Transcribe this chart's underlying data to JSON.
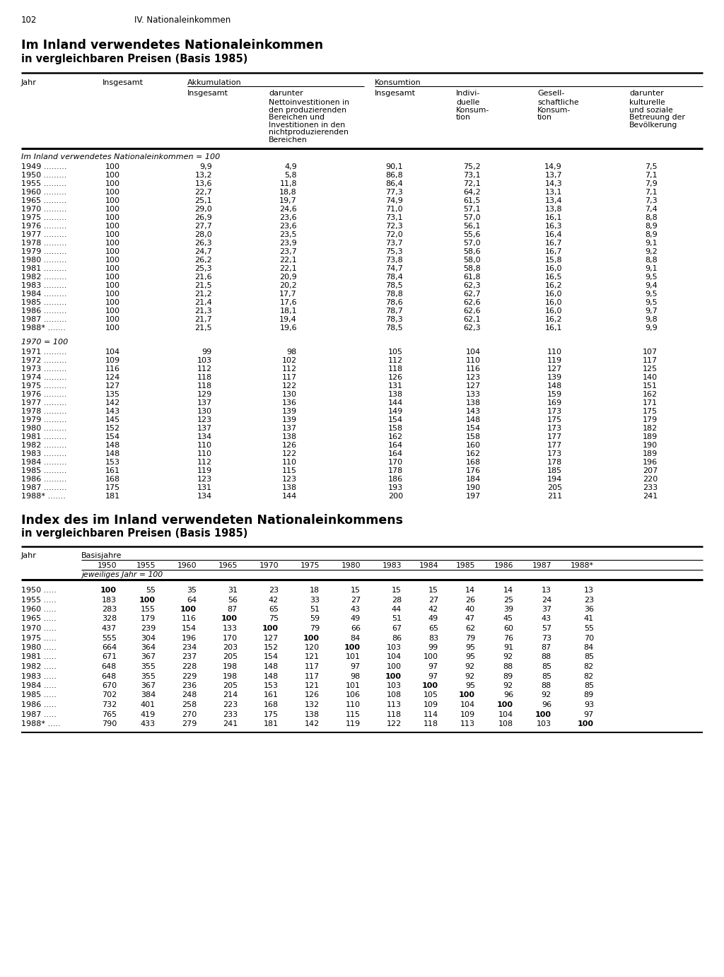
{
  "page_num": "102",
  "section_title": "IV. Nationaleinkommen",
  "title1": "Im Inland verwendetes Nationaleinkommen",
  "subtitle1": "in vergleichbaren Preisen (Basis 1985)",
  "title2": "Index des im Inland verwendeten Nationaleinkommens",
  "subtitle2": "in vergleichbaren Preisen (Basis 1985)",
  "section1_label": "Im Inland verwendetes Nationaleinkommen = 100",
  "section2_label": "1970 = 100",
  "table1_data": [
    [
      "1949",
      "100",
      "9,9",
      "4,9",
      "90,1",
      "75,2",
      "14,9",
      "7,5"
    ],
    [
      "1950",
      "100",
      "13,2",
      "5,8",
      "86,8",
      "73,1",
      "13,7",
      "7,1"
    ],
    [
      "1955",
      "100",
      "13,6",
      "11,8",
      "86,4",
      "72,1",
      "14,3",
      "7,9"
    ],
    [
      "1960",
      "100",
      "22,7",
      "18,8",
      "77,3",
      "64,2",
      "13,1",
      "7,1"
    ],
    [
      "1965",
      "100",
      "25,1",
      "19,7",
      "74,9",
      "61,5",
      "13,4",
      "7,3"
    ],
    [
      "1970",
      "100",
      "29,0",
      "24,6",
      "71,0",
      "57,1",
      "13,8",
      "7,4"
    ],
    [
      "1975",
      "100",
      "26,9",
      "23,6",
      "73,1",
      "57,0",
      "16,1",
      "8,8"
    ],
    [
      "1976",
      "100",
      "27,7",
      "23,6",
      "72,3",
      "56,1",
      "16,3",
      "8,9"
    ],
    [
      "1977",
      "100",
      "28,0",
      "23,5",
      "72,0",
      "55,6",
      "16,4",
      "8,9"
    ],
    [
      "1978",
      "100",
      "26,3",
      "23,9",
      "73,7",
      "57,0",
      "16,7",
      "9,1"
    ],
    [
      "1979",
      "100",
      "24,7",
      "23,7",
      "75,3",
      "58,6",
      "16,7",
      "9,2"
    ],
    [
      "1980",
      "100",
      "26,2",
      "22,1",
      "73,8",
      "58,0",
      "15,8",
      "8,8"
    ],
    [
      "1981",
      "100",
      "25,3",
      "22,1",
      "74,7",
      "58,8",
      "16,0",
      "9,1"
    ],
    [
      "1982",
      "100",
      "21,6",
      "20,9",
      "78,4",
      "61,8",
      "16,5",
      "9,5"
    ],
    [
      "1983",
      "100",
      "21,5",
      "20,2",
      "78,5",
      "62,3",
      "16,2",
      "9,4"
    ],
    [
      "1984",
      "100",
      "21,2",
      "17,7",
      "78,8",
      "62,7",
      "16,0",
      "9,5"
    ],
    [
      "1985",
      "100",
      "21,4",
      "17,6",
      "78,6",
      "62,6",
      "16,0",
      "9,5"
    ],
    [
      "1986",
      "100",
      "21,3",
      "18,1",
      "78,7",
      "62,6",
      "16,0",
      "9,7"
    ],
    [
      "1987",
      "100",
      "21,7",
      "19,4",
      "78,3",
      "62,1",
      "16,2",
      "9,8"
    ],
    [
      "1988*",
      "100",
      "21,5",
      "19,6",
      "78,5",
      "62,3",
      "16,1",
      "9,9"
    ]
  ],
  "table2_data": [
    [
      "1971",
      "104",
      "99",
      "98",
      "105",
      "104",
      "110",
      "107"
    ],
    [
      "1972",
      "109",
      "103",
      "102",
      "112",
      "110",
      "119",
      "117"
    ],
    [
      "1973",
      "116",
      "112",
      "112",
      "118",
      "116",
      "127",
      "125"
    ],
    [
      "1974",
      "124",
      "118",
      "117",
      "126",
      "123",
      "139",
      "140"
    ],
    [
      "1975",
      "127",
      "118",
      "122",
      "131",
      "127",
      "148",
      "151"
    ],
    [
      "1976",
      "135",
      "129",
      "130",
      "138",
      "133",
      "159",
      "162"
    ],
    [
      "1977",
      "142",
      "137",
      "136",
      "144",
      "138",
      "169",
      "171"
    ],
    [
      "1978",
      "143",
      "130",
      "139",
      "149",
      "143",
      "173",
      "175"
    ],
    [
      "1979",
      "145",
      "123",
      "139",
      "154",
      "148",
      "175",
      "179"
    ],
    [
      "1980",
      "152",
      "137",
      "137",
      "158",
      "154",
      "173",
      "182"
    ],
    [
      "1981",
      "154",
      "134",
      "138",
      "162",
      "158",
      "177",
      "189"
    ],
    [
      "1982",
      "148",
      "110",
      "126",
      "164",
      "160",
      "177",
      "190"
    ],
    [
      "1983",
      "148",
      "110",
      "122",
      "164",
      "162",
      "173",
      "189"
    ],
    [
      "1984",
      "153",
      "112",
      "110",
      "170",
      "168",
      "178",
      "196"
    ],
    [
      "1985",
      "161",
      "119",
      "115",
      "178",
      "176",
      "185",
      "207"
    ],
    [
      "1986",
      "168",
      "123",
      "123",
      "186",
      "184",
      "194",
      "220"
    ],
    [
      "1987",
      "175",
      "131",
      "138",
      "193",
      "190",
      "205",
      "233"
    ],
    [
      "1988*",
      "181",
      "134",
      "144",
      "200",
      "197",
      "211",
      "241"
    ]
  ],
  "idx_years": [
    "1950",
    "1955",
    "1960",
    "1965",
    "1970",
    "1975",
    "1980",
    "1983",
    "1984",
    "1985",
    "1986",
    "1987",
    "1988*"
  ],
  "index_table_data": [
    [
      "1950",
      "100",
      "55",
      "35",
      "31",
      "23",
      "18",
      "15",
      "15",
      "15",
      "14",
      "14",
      "13",
      "13"
    ],
    [
      "1955",
      "183",
      "100",
      "64",
      "56",
      "42",
      "33",
      "27",
      "28",
      "27",
      "26",
      "25",
      "24",
      "23"
    ],
    [
      "1960",
      "283",
      "155",
      "100",
      "87",
      "65",
      "51",
      "43",
      "44",
      "42",
      "40",
      "39",
      "37",
      "36"
    ],
    [
      "1965",
      "328",
      "179",
      "116",
      "100",
      "75",
      "59",
      "49",
      "51",
      "49",
      "47",
      "45",
      "43",
      "41"
    ],
    [
      "1970",
      "437",
      "239",
      "154",
      "133",
      "100",
      "79",
      "66",
      "67",
      "65",
      "62",
      "60",
      "57",
      "55"
    ],
    [
      "1975",
      "555",
      "304",
      "196",
      "170",
      "127",
      "100",
      "84",
      "86",
      "83",
      "79",
      "76",
      "73",
      "70"
    ],
    [
      "1980",
      "664",
      "364",
      "234",
      "203",
      "152",
      "120",
      "100",
      "103",
      "99",
      "95",
      "91",
      "87",
      "84"
    ],
    [
      "1981",
      "671",
      "367",
      "237",
      "205",
      "154",
      "121",
      "101",
      "104",
      "100",
      "95",
      "92",
      "88",
      "85"
    ],
    [
      "1982",
      "648",
      "355",
      "228",
      "198",
      "148",
      "117",
      "97",
      "100",
      "97",
      "92",
      "88",
      "85",
      "82"
    ],
    [
      "1983",
      "648",
      "355",
      "229",
      "198",
      "148",
      "117",
      "98",
      "100",
      "97",
      "92",
      "89",
      "85",
      "82"
    ],
    [
      "1984",
      "670",
      "367",
      "236",
      "205",
      "153",
      "121",
      "101",
      "103",
      "100",
      "95",
      "92",
      "88",
      "85"
    ],
    [
      "1985",
      "702",
      "384",
      "248",
      "214",
      "161",
      "126",
      "106",
      "108",
      "105",
      "100",
      "96",
      "92",
      "89"
    ],
    [
      "1986",
      "732",
      "401",
      "258",
      "223",
      "168",
      "132",
      "110",
      "113",
      "109",
      "104",
      "100",
      "96",
      "93"
    ],
    [
      "1987",
      "765",
      "419",
      "270",
      "233",
      "175",
      "138",
      "115",
      "118",
      "114",
      "109",
      "104",
      "100",
      "97"
    ],
    [
      "1988*",
      "790",
      "433",
      "279",
      "241",
      "181",
      "142",
      "119",
      "122",
      "118",
      "113",
      "108",
      "103",
      "100"
    ]
  ]
}
